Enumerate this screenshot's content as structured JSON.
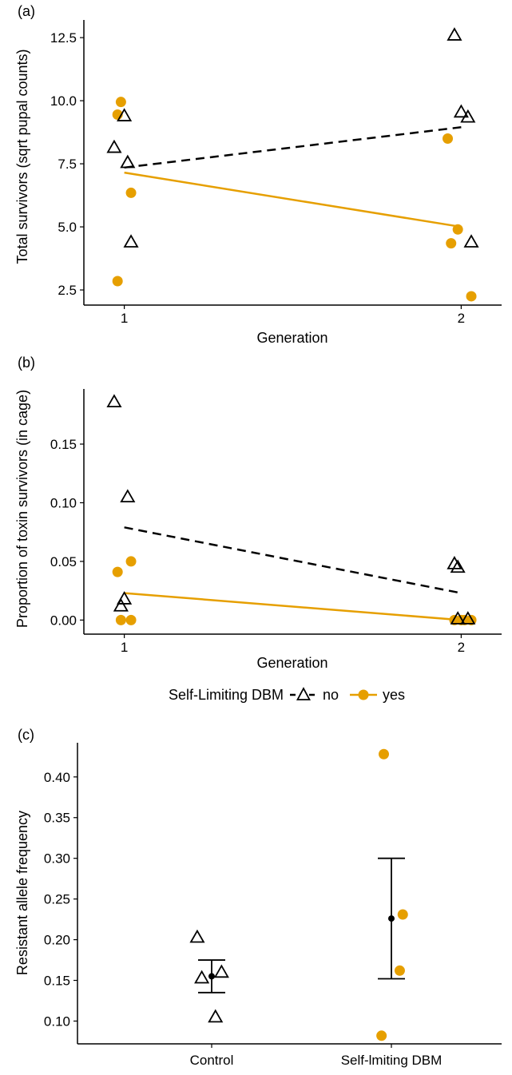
{
  "colors": {
    "no": "#000000",
    "yes": "#E69F00"
  },
  "legend": {
    "title": "Self-Limiting DBM",
    "items": [
      {
        "key": "no",
        "label": "no",
        "marker": "open-triangle",
        "line": "dashed"
      },
      {
        "key": "yes",
        "label": "yes",
        "marker": "filled-circle",
        "line": "solid"
      }
    ]
  },
  "chart_data": [
    {
      "panel_label": "(a)",
      "type": "scatter",
      "xlabel": "Generation",
      "ylabel": "Total survivors (sqrt pupal counts)",
      "xlim": [
        0.88,
        2.12
      ],
      "ylim": [
        1.9,
        13.2
      ],
      "xticks": [
        1,
        2
      ],
      "yticks": [
        2.5,
        5.0,
        7.5,
        10.0,
        12.5
      ],
      "ytick_labels": [
        "2.5",
        "5.0",
        "7.5",
        "10.0",
        "12.5"
      ],
      "series": [
        {
          "key": "no",
          "points": [
            [
              0.97,
              8.15
            ],
            [
              1.0,
              9.4
            ],
            [
              1.01,
              7.55
            ],
            [
              1.02,
              4.4
            ],
            [
              1.98,
              12.6
            ],
            [
              2.0,
              9.55
            ],
            [
              2.02,
              9.35
            ],
            [
              2.03,
              4.4
            ]
          ],
          "trend": [
            [
              1.0,
              7.35
            ],
            [
              2.0,
              8.95
            ]
          ]
        },
        {
          "key": "yes",
          "points": [
            [
              0.98,
              9.45
            ],
            [
              0.99,
              9.95
            ],
            [
              1.02,
              6.35
            ],
            [
              0.98,
              2.85
            ],
            [
              1.96,
              8.5
            ],
            [
              1.99,
              4.9
            ],
            [
              1.97,
              4.35
            ],
            [
              2.03,
              2.25
            ]
          ],
          "trend": [
            [
              1.0,
              7.15
            ],
            [
              2.0,
              5.0
            ]
          ]
        }
      ]
    },
    {
      "panel_label": "(b)",
      "type": "scatter",
      "xlabel": "Generation",
      "ylabel": "Proportion of toxin survivors (in cage)",
      "xlim": [
        0.88,
        2.12
      ],
      "ylim": [
        -0.012,
        0.197
      ],
      "xticks": [
        1,
        2
      ],
      "yticks": [
        0.0,
        0.05,
        0.1,
        0.15
      ],
      "ytick_labels": [
        "0.00",
        "0.05",
        "0.10",
        "0.15"
      ],
      "series": [
        {
          "key": "no",
          "points": [
            [
              0.97,
              0.186
            ],
            [
              1.01,
              0.105
            ],
            [
              1.0,
              0.018
            ],
            [
              0.99,
              0.012
            ],
            [
              1.98,
              0.048
            ],
            [
              1.99,
              0.045
            ],
            [
              1.99,
              0.001
            ],
            [
              2.02,
              0.001
            ]
          ],
          "trend": [
            [
              1.0,
              0.079
            ],
            [
              2.0,
              0.023
            ]
          ]
        },
        {
          "key": "yes",
          "points": [
            [
              0.98,
              0.041
            ],
            [
              1.02,
              0.05
            ],
            [
              0.99,
              0.0
            ],
            [
              1.02,
              0.0
            ],
            [
              1.98,
              0.0
            ],
            [
              2.0,
              0.0
            ],
            [
              2.01,
              0.0
            ],
            [
              2.03,
              0.0
            ]
          ],
          "trend": [
            [
              1.0,
              0.023
            ],
            [
              2.0,
              0.0
            ]
          ]
        }
      ]
    },
    {
      "panel_label": "(c)",
      "type": "scatter",
      "xlabel": "",
      "ylabel": "Resistant allele frequency",
      "categories": [
        "Control",
        "Self-lmiting DBM"
      ],
      "ylim": [
        0.072,
        0.442
      ],
      "yticks": [
        0.1,
        0.15,
        0.2,
        0.25,
        0.3,
        0.35,
        0.4
      ],
      "ytick_labels": [
        "0.10",
        "0.15",
        "0.20",
        "0.25",
        "0.30",
        "0.35",
        "0.40"
      ],
      "groups": [
        {
          "category": "Control",
          "key": "no",
          "points": [
            [
              -0.19,
              0.203
            ],
            [
              -0.13,
              0.153
            ],
            [
              0.13,
              0.16
            ],
            [
              0.05,
              0.105
            ]
          ],
          "mean": 0.155,
          "err_low": 0.135,
          "err_high": 0.175
        },
        {
          "category": "Self-lmiting DBM",
          "key": "yes",
          "points": [
            [
              -0.1,
              0.428
            ],
            [
              0.15,
              0.231
            ],
            [
              0.11,
              0.162
            ],
            [
              -0.13,
              0.082
            ]
          ],
          "mean": 0.226,
          "err_low": 0.152,
          "err_high": 0.3
        }
      ]
    }
  ]
}
